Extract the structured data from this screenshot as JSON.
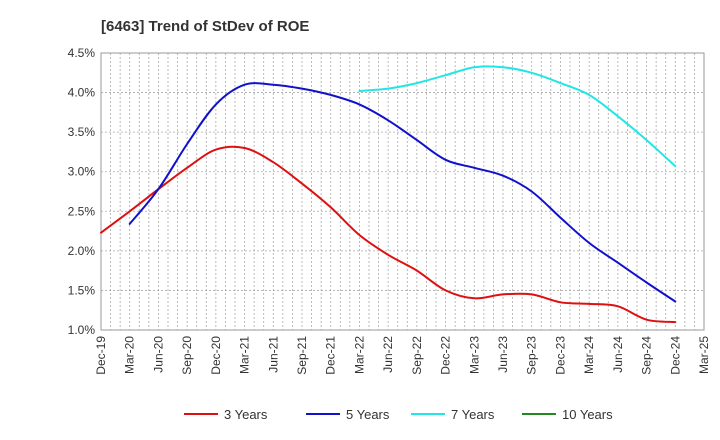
{
  "chart_data": {
    "type": "line",
    "title": "[6463]  Trend of StDev of ROE",
    "xlabel": "",
    "ylabel": "",
    "ylim": [
      1.0,
      4.5
    ],
    "y_ticks": [
      1.0,
      1.5,
      2.0,
      2.5,
      3.0,
      3.5,
      4.0,
      4.5
    ],
    "y_tick_labels": [
      "1.0%",
      "1.5%",
      "2.0%",
      "2.5%",
      "3.0%",
      "3.5%",
      "4.0%",
      "4.5%"
    ],
    "x_tick_labels": [
      "Dec-19",
      "Mar-20",
      "Jun-20",
      "Sep-20",
      "Dec-20",
      "Mar-21",
      "Jun-21",
      "Sep-21",
      "Dec-21",
      "Mar-22",
      "Jun-22",
      "Sep-22",
      "Dec-22",
      "Mar-23",
      "Jun-23",
      "Sep-23",
      "Dec-23",
      "Mar-24",
      "Jun-24",
      "Sep-24",
      "Dec-24",
      "Mar-25"
    ],
    "grid": true,
    "legend_position": "bottom",
    "series": [
      {
        "name": "3 Years",
        "color": "#dd1111",
        "values": [
          2.23,
          2.5,
          2.78,
          3.05,
          3.28,
          3.3,
          3.12,
          2.85,
          2.55,
          2.2,
          1.95,
          1.75,
          1.5,
          1.4,
          1.45,
          1.45,
          1.35,
          1.33,
          1.3,
          1.13,
          1.1,
          null
        ]
      },
      {
        "name": "5 Years",
        "color": "#1111cc",
        "values": [
          null,
          2.34,
          2.78,
          3.35,
          3.85,
          4.1,
          4.1,
          4.05,
          3.97,
          3.85,
          3.65,
          3.4,
          3.15,
          3.05,
          2.95,
          2.75,
          2.42,
          2.1,
          1.85,
          1.6,
          1.36,
          null
        ]
      },
      {
        "name": "7 Years",
        "color": "#22e6e6",
        "values": [
          null,
          null,
          null,
          null,
          null,
          null,
          null,
          null,
          null,
          4.02,
          4.05,
          4.12,
          4.22,
          4.32,
          4.32,
          4.25,
          4.12,
          3.97,
          3.7,
          3.4,
          3.07,
          null
        ]
      },
      {
        "name": "10 Years",
        "color": "#228822",
        "values": [
          null,
          null,
          null,
          null,
          null,
          null,
          null,
          null,
          null,
          null,
          null,
          null,
          null,
          null,
          null,
          null,
          null,
          null,
          null,
          null,
          null,
          null
        ]
      }
    ]
  }
}
